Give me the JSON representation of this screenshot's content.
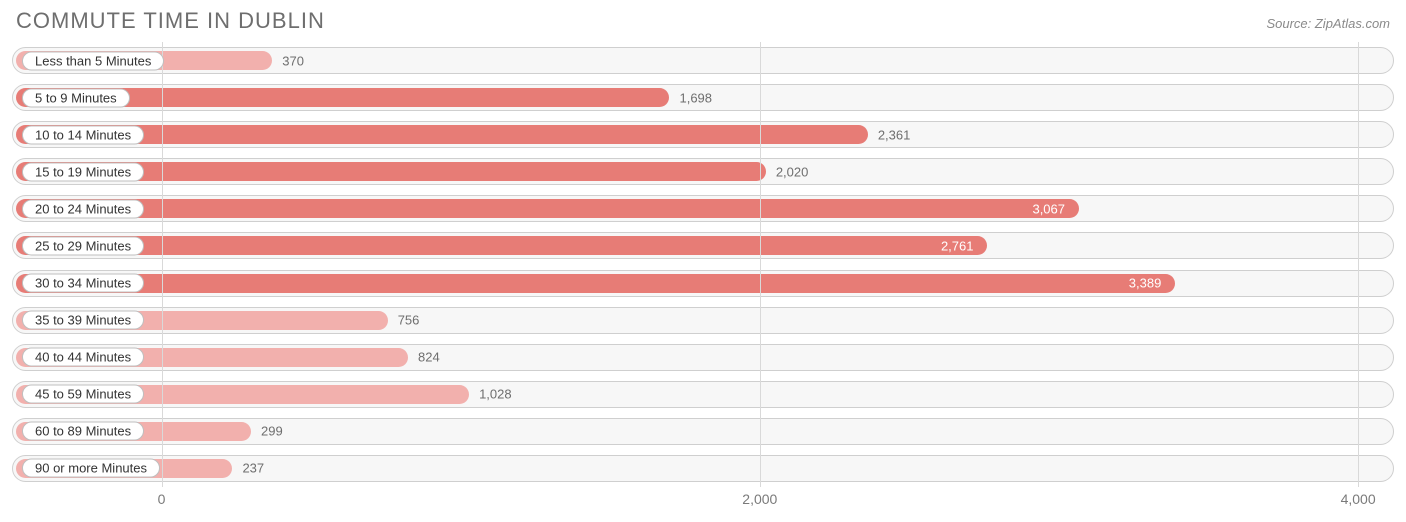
{
  "chart": {
    "type": "horizontal-bar",
    "title": "COMMUTE TIME IN DUBLIN",
    "source_label": "Source: ZipAtlas.com",
    "background_color": "#ffffff",
    "track_bg": "#f7f7f7",
    "track_border": "#cfcfcf",
    "grid_color": "#d9d9d9",
    "text_color": "#6e6e6e",
    "title_fontsize": 22,
    "label_fontsize": 13,
    "value_fontsize": 13,
    "bar_colors": {
      "light": "#f2b0ad",
      "dark": "#e77c76"
    },
    "x_axis": {
      "min": -500,
      "max": 4120,
      "ticks": [
        {
          "value": 0,
          "label": "0"
        },
        {
          "value": 2000,
          "label": "2,000"
        },
        {
          "value": 4000,
          "label": "4,000"
        }
      ]
    },
    "bars": [
      {
        "label": "Less than 5 Minutes",
        "value": 370,
        "display": "370",
        "shade": "light",
        "value_pos": "outside"
      },
      {
        "label": "5 to 9 Minutes",
        "value": 1698,
        "display": "1,698",
        "shade": "dark",
        "value_pos": "outside"
      },
      {
        "label": "10 to 14 Minutes",
        "value": 2361,
        "display": "2,361",
        "shade": "dark",
        "value_pos": "outside"
      },
      {
        "label": "15 to 19 Minutes",
        "value": 2020,
        "display": "2,020",
        "shade": "dark",
        "value_pos": "outside"
      },
      {
        "label": "20 to 24 Minutes",
        "value": 3067,
        "display": "3,067",
        "shade": "dark",
        "value_pos": "inside"
      },
      {
        "label": "25 to 29 Minutes",
        "value": 2761,
        "display": "2,761",
        "shade": "dark",
        "value_pos": "inside"
      },
      {
        "label": "30 to 34 Minutes",
        "value": 3389,
        "display": "3,389",
        "shade": "dark",
        "value_pos": "inside"
      },
      {
        "label": "35 to 39 Minutes",
        "value": 756,
        "display": "756",
        "shade": "light",
        "value_pos": "outside"
      },
      {
        "label": "40 to 44 Minutes",
        "value": 824,
        "display": "824",
        "shade": "light",
        "value_pos": "outside"
      },
      {
        "label": "45 to 59 Minutes",
        "value": 1028,
        "display": "1,028",
        "shade": "light",
        "value_pos": "outside"
      },
      {
        "label": "60 to 89 Minutes",
        "value": 299,
        "display": "299",
        "shade": "light",
        "value_pos": "outside"
      },
      {
        "label": "90 or more Minutes",
        "value": 237,
        "display": "237",
        "shade": "light",
        "value_pos": "outside"
      }
    ]
  }
}
